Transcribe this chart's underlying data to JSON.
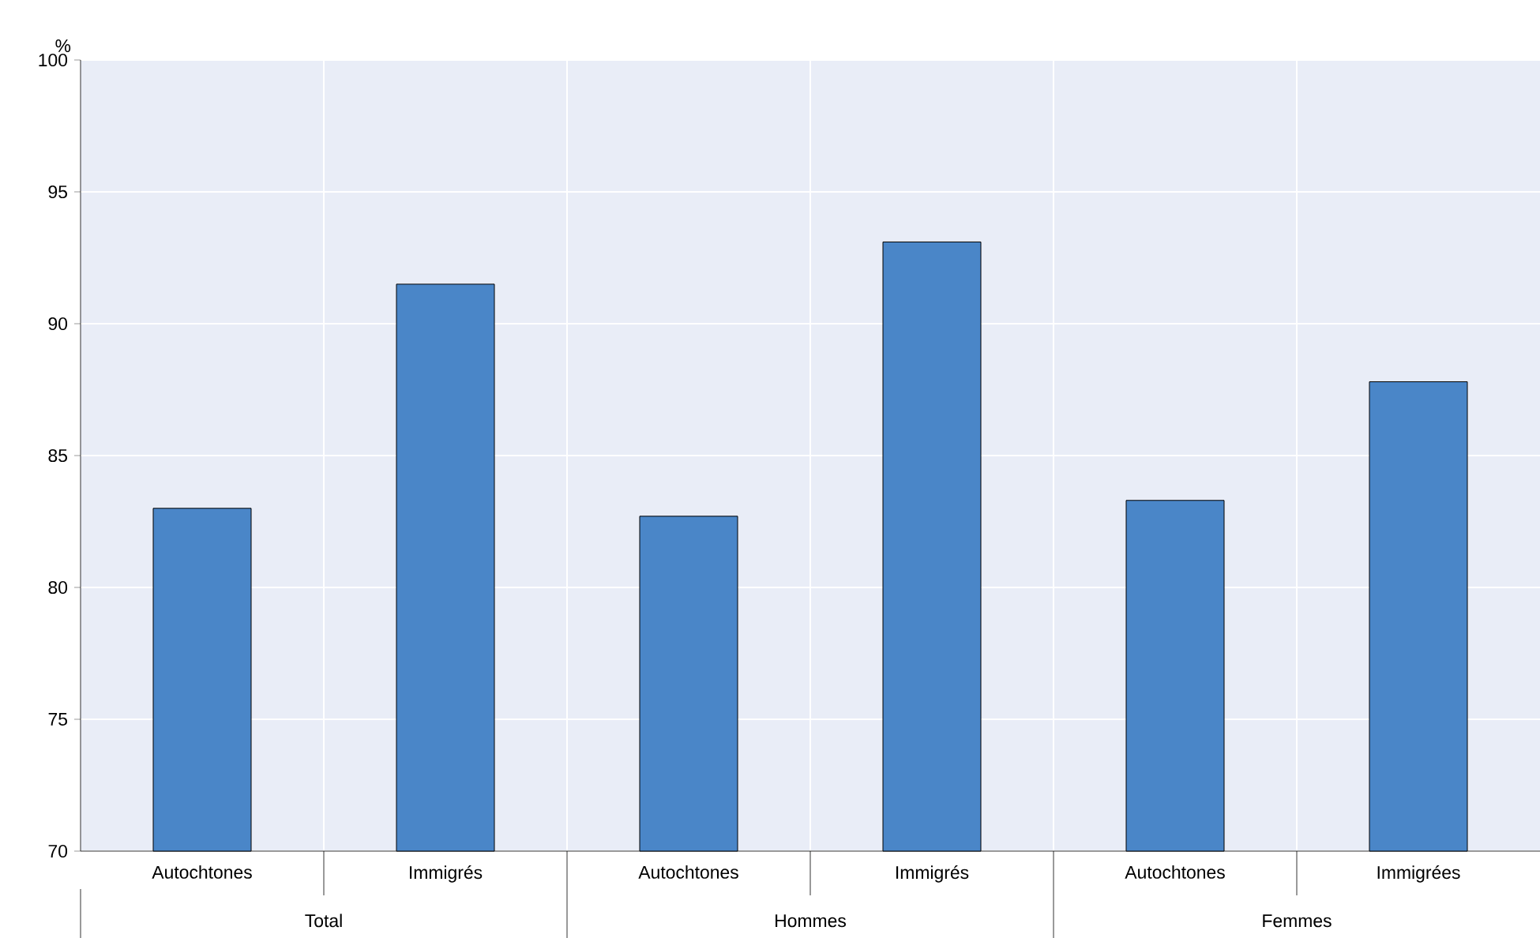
{
  "chart_data": {
    "type": "bar",
    "ylabel": "%",
    "categories": [
      "Autochtones",
      "Immigrés",
      "Autochtones",
      "Immigrés",
      "Autochtones",
      "Immigrées"
    ],
    "values": [
      83.0,
      91.5,
      82.7,
      93.1,
      83.3,
      87.8
    ],
    "color": "#4a86c8",
    "ylim": [
      70,
      100
    ],
    "yticks": [
      70,
      75,
      80,
      85,
      90,
      95,
      100
    ],
    "grid": true,
    "annotations": [
      "Total",
      "Hommes",
      "Femmes"
    ]
  }
}
